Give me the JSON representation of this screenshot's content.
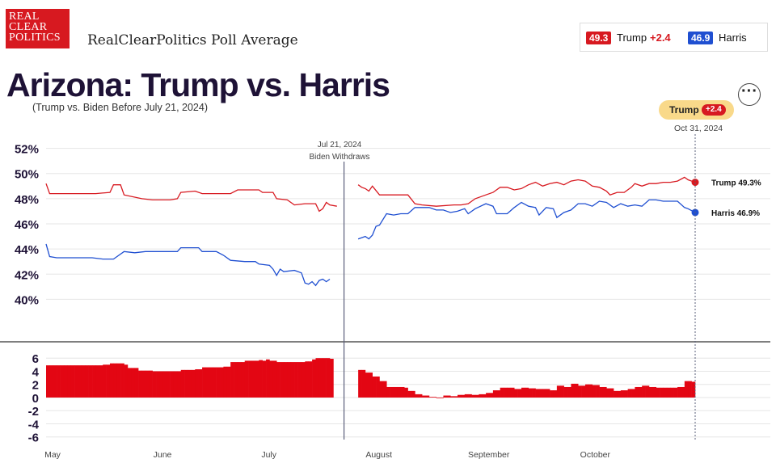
{
  "brand": {
    "logo_lines": [
      "REAL",
      "CLEAR",
      "POLITICS"
    ],
    "title": "RealClearPolitics Poll Average"
  },
  "topbar": {
    "trump_value": "49.3",
    "trump_name": "Trump",
    "trump_spread": "+2.4",
    "harris_value": "46.9",
    "harris_name": "Harris",
    "colors": {
      "trump": "#d71920",
      "harris": "#1f4fd1"
    }
  },
  "header": {
    "title": "Arizona: Trump vs. Harris",
    "subtitle": "(Trump vs. Biden Before July 21, 2024)",
    "more_icon": "ellipsis-icon"
  },
  "leader": {
    "name": "Trump",
    "spread": "+2.4",
    "date": "Oct 31, 2024"
  },
  "annotation": {
    "date": "Jul 21, 2024",
    "text": "Biden Withdraws"
  },
  "chart_data": {
    "type": "line",
    "x_axis_labels": [
      "May",
      "June",
      "July",
      "August",
      "September",
      "October"
    ],
    "x_axis_label_days": [
      0,
      31,
      61,
      92,
      123,
      153
    ],
    "x_range_days": [
      0,
      183
    ],
    "top_panel": {
      "ylim": [
        39,
        53
      ],
      "y_ticks": [
        40,
        42,
        44,
        46,
        48,
        50,
        52
      ],
      "y_tick_labels": [
        "40%",
        "42%",
        "44%",
        "46%",
        "48%",
        "50%",
        "52%"
      ],
      "series": [
        {
          "name": "Trump",
          "color": "#d71920",
          "end_label": "Trump 49.3%",
          "points": [
            [
              0,
              49.2
            ],
            [
              1,
              48.4
            ],
            [
              5,
              48.4
            ],
            [
              10,
              48.4
            ],
            [
              14,
              48.4
            ],
            [
              18,
              48.5
            ],
            [
              19,
              49.1
            ],
            [
              21,
              49.1
            ],
            [
              22,
              48.3
            ],
            [
              27,
              48.0
            ],
            [
              30,
              47.9
            ],
            [
              35,
              47.9
            ],
            [
              37,
              48.0
            ],
            [
              38,
              48.5
            ],
            [
              42,
              48.6
            ],
            [
              44,
              48.4
            ],
            [
              48,
              48.4
            ],
            [
              52,
              48.4
            ],
            [
              54,
              48.7
            ],
            [
              60,
              48.7
            ],
            [
              61,
              48.5
            ],
            [
              64,
              48.5
            ],
            [
              65,
              48.0
            ],
            [
              68,
              47.9
            ],
            [
              70,
              47.5
            ],
            [
              73,
              47.6
            ],
            [
              76,
              47.6
            ],
            [
              77,
              47.0
            ],
            [
              78,
              47.2
            ],
            [
              79,
              47.7
            ],
            [
              80,
              47.5
            ],
            [
              82,
              47.4
            ],
            [
              88,
              49.1
            ],
            [
              89,
              48.9
            ],
            [
              90,
              48.8
            ],
            [
              91,
              48.6
            ],
            [
              92,
              49.0
            ],
            [
              94,
              48.3
            ],
            [
              98,
              48.3
            ],
            [
              102,
              48.3
            ],
            [
              104,
              47.6
            ],
            [
              106,
              47.5
            ],
            [
              110,
              47.4
            ],
            [
              115,
              47.5
            ],
            [
              117,
              47.5
            ],
            [
              119,
              47.6
            ],
            [
              121,
              48.0
            ],
            [
              124,
              48.3
            ],
            [
              126,
              48.5
            ],
            [
              128,
              48.9
            ],
            [
              130,
              48.9
            ],
            [
              132,
              48.7
            ],
            [
              134,
              48.8
            ],
            [
              136,
              49.1
            ],
            [
              138,
              49.3
            ],
            [
              140,
              49.0
            ],
            [
              142,
              49.2
            ],
            [
              144,
              49.3
            ],
            [
              146,
              49.1
            ],
            [
              148,
              49.4
            ],
            [
              150,
              49.5
            ],
            [
              152,
              49.4
            ],
            [
              154,
              49.0
            ],
            [
              156,
              48.9
            ],
            [
              158,
              48.6
            ],
            [
              159,
              48.3
            ],
            [
              161,
              48.5
            ],
            [
              163,
              48.5
            ],
            [
              165,
              48.9
            ],
            [
              166,
              49.2
            ],
            [
              168,
              49.0
            ],
            [
              170,
              49.2
            ],
            [
              172,
              49.2
            ],
            [
              174,
              49.3
            ],
            [
              176,
              49.3
            ],
            [
              178,
              49.4
            ],
            [
              180,
              49.7
            ],
            [
              181,
              49.5
            ],
            [
              183,
              49.3
            ]
          ]
        },
        {
          "name": "Harris",
          "color": "#1f4fd1",
          "end_label": "Harris 46.9%",
          "points": [
            [
              0,
              44.4
            ],
            [
              1,
              43.4
            ],
            [
              3,
              43.3
            ],
            [
              8,
              43.3
            ],
            [
              13,
              43.3
            ],
            [
              16,
              43.2
            ],
            [
              19,
              43.2
            ],
            [
              20,
              43.4
            ],
            [
              22,
              43.8
            ],
            [
              25,
              43.7
            ],
            [
              28,
              43.8
            ],
            [
              33,
              43.8
            ],
            [
              37,
              43.8
            ],
            [
              38,
              44.1
            ],
            [
              43,
              44.1
            ],
            [
              44,
              43.8
            ],
            [
              48,
              43.8
            ],
            [
              50,
              43.5
            ],
            [
              52,
              43.1
            ],
            [
              56,
              43.0
            ],
            [
              59,
              43.0
            ],
            [
              60,
              42.8
            ],
            [
              63,
              42.7
            ],
            [
              64,
              42.4
            ],
            [
              65,
              41.9
            ],
            [
              66,
              42.4
            ],
            [
              67,
              42.2
            ],
            [
              70,
              42.3
            ],
            [
              72,
              42.1
            ],
            [
              73,
              41.3
            ],
            [
              74,
              41.2
            ],
            [
              75,
              41.4
            ],
            [
              76,
              41.1
            ],
            [
              77,
              41.5
            ],
            [
              78,
              41.6
            ],
            [
              79,
              41.4
            ],
            [
              80,
              41.6
            ],
            [
              88,
              44.8
            ],
            [
              90,
              45.0
            ],
            [
              91,
              44.8
            ],
            [
              92,
              45.1
            ],
            [
              93,
              45.8
            ],
            [
              94,
              45.9
            ],
            [
              96,
              46.8
            ],
            [
              98,
              46.7
            ],
            [
              100,
              46.8
            ],
            [
              102,
              46.8
            ],
            [
              104,
              47.3
            ],
            [
              106,
              47.3
            ],
            [
              108,
              47.3
            ],
            [
              110,
              47.1
            ],
            [
              112,
              47.1
            ],
            [
              114,
              46.9
            ],
            [
              116,
              47.0
            ],
            [
              118,
              47.2
            ],
            [
              119,
              46.8
            ],
            [
              121,
              47.2
            ],
            [
              124,
              47.6
            ],
            [
              126,
              47.4
            ],
            [
              127,
              46.8
            ],
            [
              130,
              46.8
            ],
            [
              132,
              47.3
            ],
            [
              134,
              47.7
            ],
            [
              136,
              47.4
            ],
            [
              138,
              47.3
            ],
            [
              139,
              46.7
            ],
            [
              141,
              47.3
            ],
            [
              143,
              47.2
            ],
            [
              144,
              46.5
            ],
            [
              146,
              46.9
            ],
            [
              148,
              47.1
            ],
            [
              150,
              47.6
            ],
            [
              152,
              47.6
            ],
            [
              154,
              47.4
            ],
            [
              156,
              47.8
            ],
            [
              158,
              47.7
            ],
            [
              160,
              47.3
            ],
            [
              162,
              47.6
            ],
            [
              164,
              47.4
            ],
            [
              166,
              47.5
            ],
            [
              168,
              47.4
            ],
            [
              170,
              47.9
            ],
            [
              172,
              47.9
            ],
            [
              174,
              47.8
            ],
            [
              176,
              47.8
            ],
            [
              178,
              47.8
            ],
            [
              180,
              47.3
            ],
            [
              181,
              47.2
            ],
            [
              183,
              46.9
            ]
          ]
        }
      ]
    },
    "spread_panel": {
      "ylim": [
        -6.4,
        7.5
      ],
      "y_ticks": [
        6,
        4,
        2,
        0,
        -2,
        -4,
        -6
      ],
      "y_tick_labels": [
        "6",
        "4",
        "2",
        "0",
        "-2",
        "-4",
        "-6"
      ],
      "color": "#e30613",
      "points": [
        [
          0,
          4.9
        ],
        [
          5,
          4.9
        ],
        [
          10,
          4.9
        ],
        [
          14,
          4.9
        ],
        [
          16,
          5.0
        ],
        [
          18,
          5.2
        ],
        [
          20,
          5.2
        ],
        [
          21,
          5.2
        ],
        [
          22,
          5.0
        ],
        [
          23,
          4.5
        ],
        [
          26,
          4.1
        ],
        [
          28,
          4.1
        ],
        [
          30,
          4.0
        ],
        [
          33,
          4.0
        ],
        [
          37,
          4.0
        ],
        [
          38,
          4.2
        ],
        [
          40,
          4.2
        ],
        [
          42,
          4.3
        ],
        [
          44,
          4.6
        ],
        [
          48,
          4.6
        ],
        [
          50,
          4.7
        ],
        [
          52,
          5.4
        ],
        [
          56,
          5.6
        ],
        [
          60,
          5.7
        ],
        [
          61,
          5.6
        ],
        [
          62,
          5.8
        ],
        [
          63,
          5.6
        ],
        [
          65,
          5.4
        ],
        [
          67,
          5.4
        ],
        [
          70,
          5.4
        ],
        [
          73,
          5.5
        ],
        [
          75,
          5.8
        ],
        [
          76,
          6.0
        ],
        [
          78,
          6.0
        ],
        [
          80,
          5.9
        ],
        [
          88,
          4.2
        ],
        [
          90,
          3.8
        ],
        [
          92,
          3.2
        ],
        [
          94,
          2.5
        ],
        [
          96,
          1.6
        ],
        [
          98,
          1.6
        ],
        [
          101,
          1.5
        ],
        [
          102,
          1.0
        ],
        [
          104,
          0.5
        ],
        [
          106,
          0.3
        ],
        [
          108,
          0.1
        ],
        [
          110,
          -0.1
        ],
        [
          112,
          0.3
        ],
        [
          114,
          0.2
        ],
        [
          116,
          0.4
        ],
        [
          118,
          0.5
        ],
        [
          120,
          0.4
        ],
        [
          122,
          0.5
        ],
        [
          124,
          0.7
        ],
        [
          126,
          1.1
        ],
        [
          128,
          1.5
        ],
        [
          130,
          1.5
        ],
        [
          132,
          1.3
        ],
        [
          134,
          1.5
        ],
        [
          136,
          1.4
        ],
        [
          138,
          1.3
        ],
        [
          140,
          1.3
        ],
        [
          142,
          1.1
        ],
        [
          144,
          1.8
        ],
        [
          146,
          1.6
        ],
        [
          148,
          2.1
        ],
        [
          150,
          1.8
        ],
        [
          152,
          2.0
        ],
        [
          154,
          1.9
        ],
        [
          156,
          1.6
        ],
        [
          158,
          1.4
        ],
        [
          160,
          1.0
        ],
        [
          162,
          1.1
        ],
        [
          164,
          1.3
        ],
        [
          166,
          1.6
        ],
        [
          168,
          1.8
        ],
        [
          170,
          1.6
        ],
        [
          172,
          1.5
        ],
        [
          174,
          1.5
        ],
        [
          176,
          1.5
        ],
        [
          178,
          1.6
        ],
        [
          180,
          2.5
        ],
        [
          182,
          2.4
        ]
      ]
    },
    "gap_days": [
      81,
      87
    ],
    "withdraw_day": 84,
    "end_day": 183
  }
}
